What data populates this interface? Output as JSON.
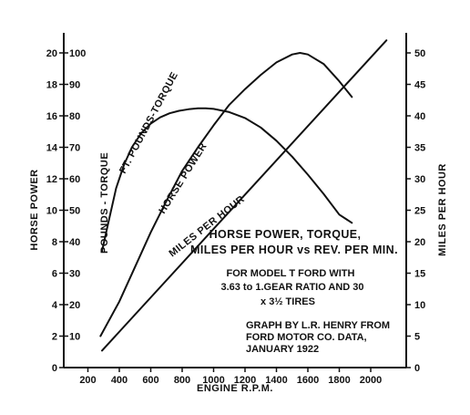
{
  "chart_data": {
    "type": "line",
    "title_lines": [
      "HORSE POWER, TORQUE,",
      "MILES PER HOUR vs REV. PER MIN."
    ],
    "subtitle_lines": [
      "FOR MODEL T FORD WITH",
      "3.63 to 1.GEAR RATIO AND 30",
      "x 3½ TIRES"
    ],
    "credit_lines": [
      "GRAPH BY L.R. HENRY FROM",
      "FORD MOTOR CO. DATA,",
      "JANUARY 1922"
    ],
    "xlabel": "ENGINE R.P.M.",
    "ylabel_left": "HORSE POWER",
    "ylabel_right": "MILES PER HOUR",
    "xlim": [
      0,
      2200
    ],
    "x_ticks": [
      200,
      400,
      600,
      800,
      1000,
      1200,
      1400,
      1600,
      1800,
      2000
    ],
    "hp_ticks": [
      0,
      2,
      4,
      6,
      8,
      10,
      12,
      14,
      16,
      18,
      20
    ],
    "torque_ticks": [
      10,
      20,
      30,
      40,
      50,
      60,
      70,
      80,
      90,
      100
    ],
    "mph_ticks": [
      0,
      5,
      10,
      15,
      20,
      25,
      30,
      35,
      40,
      45,
      50
    ],
    "ylim_hp": [
      0,
      20
    ],
    "ylim_torque": [
      0,
      100
    ],
    "ylim_mph": [
      0,
      50
    ],
    "grid": false,
    "series": [
      {
        "name": "FT. POUNDS-TORQUE",
        "axis": "torque",
        "x": [
          290,
          330,
          380,
          430,
          480,
          540,
          600,
          660,
          720,
          780,
          840,
          900,
          950,
          1000,
          1100,
          1200,
          1300,
          1400,
          1500,
          1600,
          1700,
          1800,
          1880
        ],
        "values": [
          37,
          46,
          57,
          64.5,
          70,
          74.5,
          77.5,
          79.5,
          80.8,
          81.6,
          82.1,
          82.4,
          82.4,
          82.2,
          81.2,
          79.3,
          76.3,
          72.1,
          67,
          61.3,
          55.2,
          48.6,
          46
        ]
      },
      {
        "name": "HORSE POWER",
        "axis": "hp",
        "x": [
          280,
          400,
          500,
          600,
          700,
          800,
          900,
          1000,
          1100,
          1200,
          1300,
          1400,
          1500,
          1550,
          1600,
          1700,
          1800,
          1880
        ],
        "values": [
          2,
          4.2,
          6.4,
          8.6,
          10.6,
          12.5,
          14,
          15.4,
          16.7,
          17.7,
          18.6,
          19.4,
          19.9,
          20,
          19.9,
          19.3,
          18.2,
          17.2
        ]
      },
      {
        "name": "MILES PER HOUR",
        "axis": "mph",
        "x": [
          290,
          2100
        ],
        "values": [
          2.7,
          52
        ]
      }
    ],
    "curve_labels": [
      "POUNDS - TORQUE",
      "FT. POUNDS-TORQUE",
      "HORSE POWER",
      "MILES PER HOUR"
    ]
  }
}
